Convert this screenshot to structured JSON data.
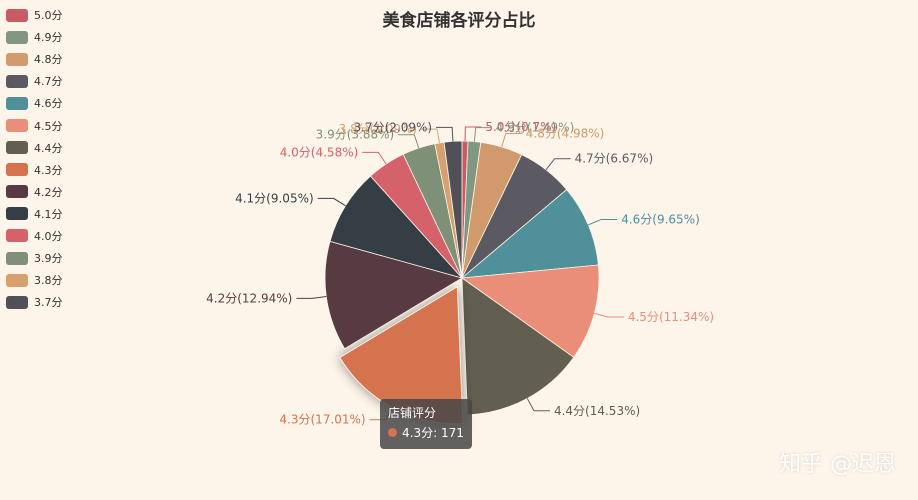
{
  "chart_data": {
    "type": "pie",
    "title": "美食店铺各评分占比",
    "legend_position": "top-left",
    "slices": [
      {
        "label": "5.0分",
        "legend": "5.0分",
        "percent": 0.7,
        "percent_text": "0.7%",
        "color": "#c95b64"
      },
      {
        "label": "4.9分",
        "legend": "4.9分",
        "percent": 1.49,
        "percent_text": "1.49%",
        "color": "#829781"
      },
      {
        "label": "4.8分",
        "legend": "4.8分",
        "percent": 4.98,
        "percent_text": "4.98%",
        "color": "#d09a6c"
      },
      {
        "label": "4.7分",
        "legend": "4.7分",
        "percent": 6.67,
        "percent_text": "6.67%",
        "color": "#5b5a62"
      },
      {
        "label": "4.6分",
        "legend": "4.6分",
        "percent": 9.65,
        "percent_text": "9.65%",
        "color": "#4f909b"
      },
      {
        "label": "4.5分",
        "legend": "4.5分",
        "percent": 11.34,
        "percent_text": "11.34%",
        "color": "#ea8e7a"
      },
      {
        "label": "4.4分",
        "legend": "4.4分",
        "percent": 14.53,
        "percent_text": "14.53%",
        "color": "#625f50"
      },
      {
        "label": "4.3分",
        "legend": "4.3分",
        "percent": 17.01,
        "percent_text": "17.01%",
        "color": "#d6734f"
      },
      {
        "label": "4.2分",
        "legend": "4.2分",
        "percent": 12.94,
        "percent_text": "12.94%",
        "color": "#583a43"
      },
      {
        "label": "4.1分",
        "legend": "4.1分",
        "percent": 9.05,
        "percent_text": "9.05%",
        "color": "#353e45"
      },
      {
        "label": "4.0分",
        "legend": "4.0分",
        "percent": 4.58,
        "percent_text": "4.58%",
        "color": "#d5626a"
      },
      {
        "label": "3.9分",
        "legend": "3.9分",
        "percent": 3.88,
        "percent_text": "3.88%",
        "color": "#7f9079"
      },
      {
        "label": "3.8分",
        "legend": "3.8分",
        "percent": 1.09,
        "percent_text": "1.09%",
        "color": "#d7a06f"
      },
      {
        "label": "3.7分",
        "legend": "3.7分",
        "percent": 2.09,
        "percent_text": "2.09%",
        "color": "#505058"
      }
    ],
    "highlighted_index": 7
  },
  "tooltip": {
    "series_name": "店铺评分",
    "item_label": "4.3分",
    "value": "171"
  },
  "watermark": "知乎 @迟恩"
}
